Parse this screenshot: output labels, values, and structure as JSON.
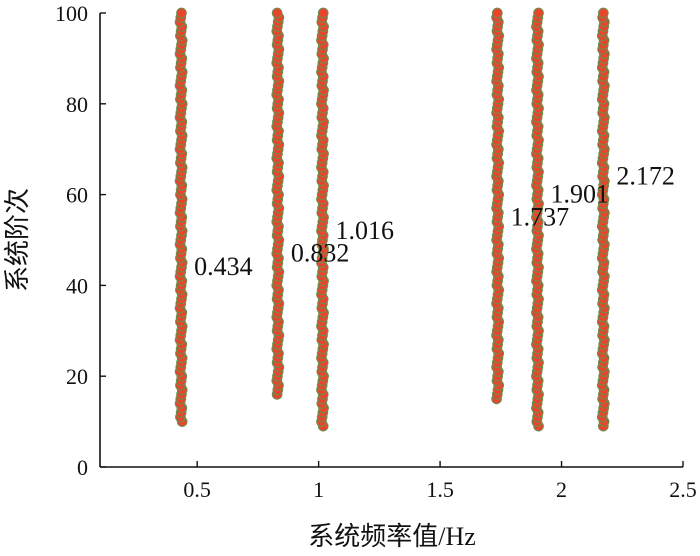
{
  "chart_data": {
    "type": "scatter",
    "xlabel": "系统频率值/Hz",
    "ylabel": "系统阶次",
    "xlim": [
      0.1,
      2.5
    ],
    "ylim": [
      0,
      100
    ],
    "xticks": [
      "0.5",
      "1",
      "1.5",
      "2",
      "2.5"
    ],
    "yticks": [
      "0",
      "20",
      "40",
      "60",
      "80",
      "100"
    ],
    "grid": false,
    "marker_color": "#e8452c",
    "marker_edge_color": "#6e8c4e",
    "series": [
      {
        "x": 0.434,
        "y_range": [
          10,
          100
        ],
        "label": "0.434",
        "label_y": 44
      },
      {
        "x": 0.832,
        "y_range": [
          16,
          100
        ],
        "label": "0.832",
        "label_y": 47
      },
      {
        "x": 1.016,
        "y_range": [
          9,
          100
        ],
        "label": "1.016",
        "label_y": 52
      },
      {
        "x": 1.737,
        "y_range": [
          15,
          100
        ],
        "label": "1.737",
        "label_y": 55
      },
      {
        "x": 1.901,
        "y_range": [
          9,
          100
        ],
        "label": "1.901",
        "label_y": 60
      },
      {
        "x": 2.172,
        "y_range": [
          9,
          100
        ],
        "label": "2.172",
        "label_y": 64
      }
    ]
  }
}
